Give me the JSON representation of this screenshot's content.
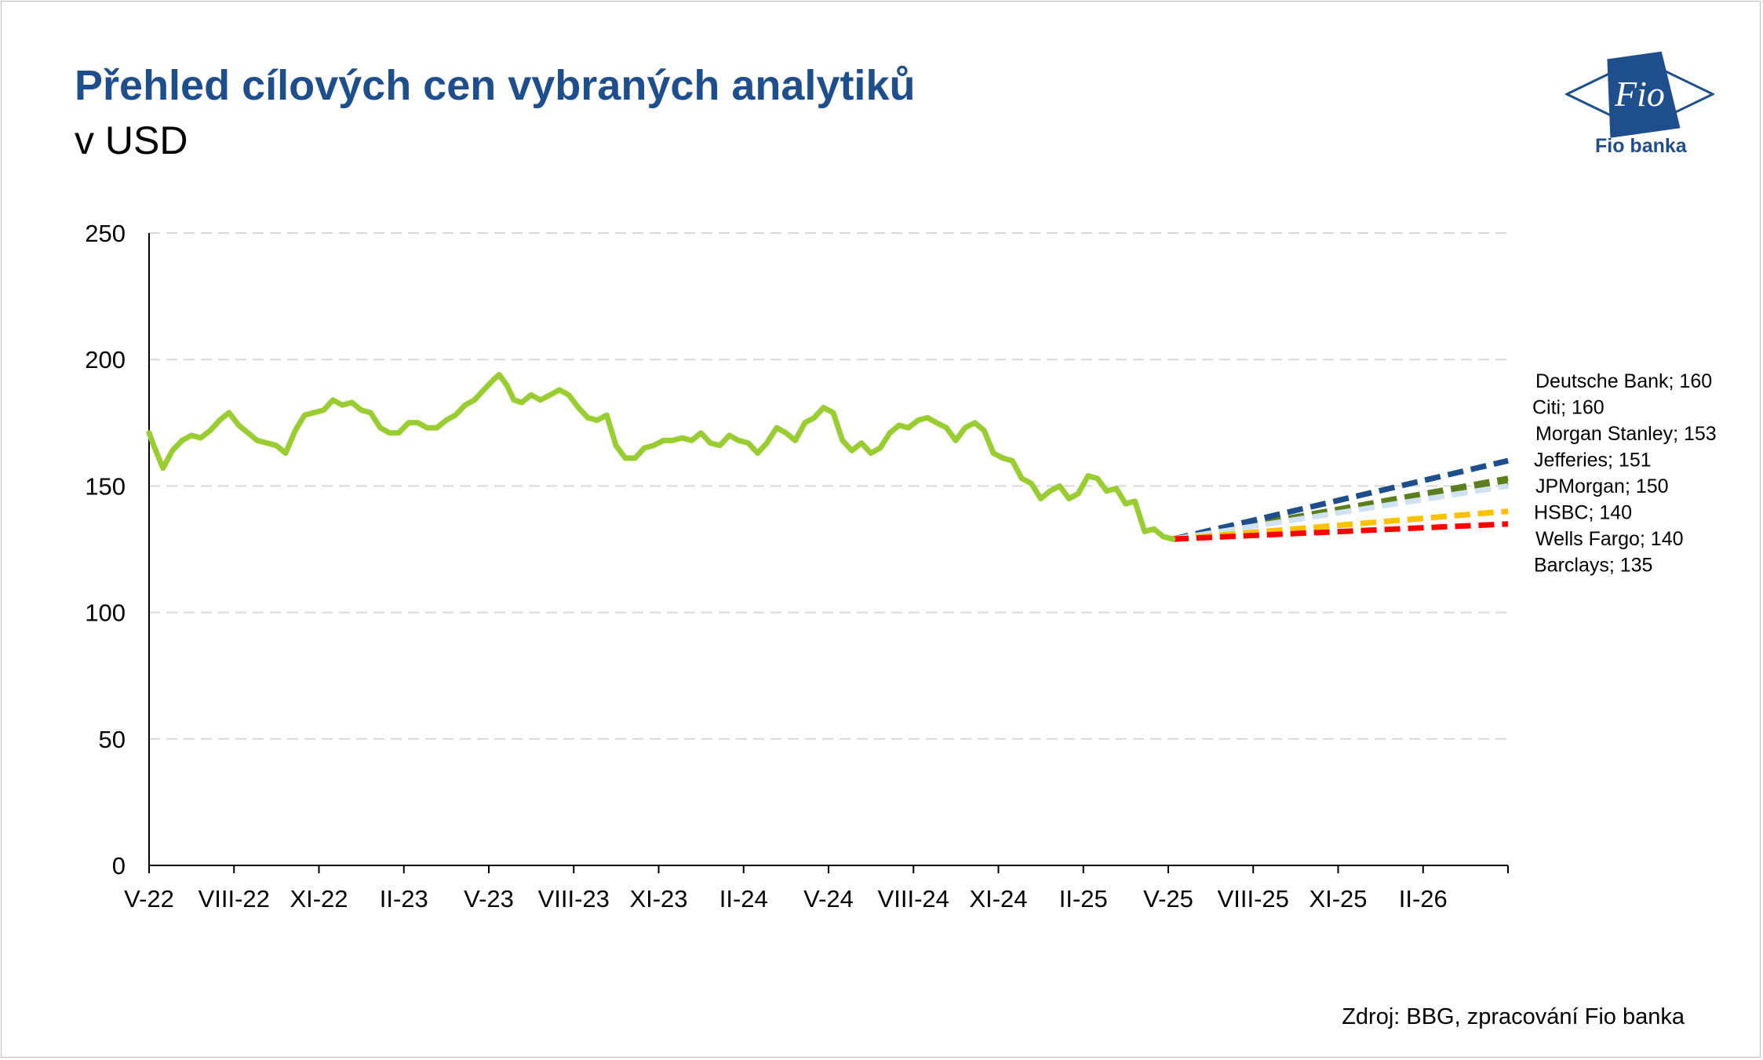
{
  "header": {
    "title": "Přehled cílových cen vybraných analytiků",
    "subtitle": "v USD"
  },
  "logo": {
    "mark_text": "Fio",
    "caption": "Fio banka"
  },
  "source": "Zdroj: BBG, zpracování  Fio banka",
  "colors": {
    "brand": "#1f4e8c",
    "price_line": "#9acd32",
    "gridline": "#d9d9d9"
  },
  "chart_data": {
    "type": "line",
    "title": "Přehled cílových cen vybraných analytiků",
    "subtitle": "v USD",
    "xlabel": "",
    "ylabel": "",
    "x_ticks": [
      "V-22",
      "VIII-22",
      "XI-22",
      "II-23",
      "V-23",
      "VIII-23",
      "XI-23",
      "II-24",
      "V-24",
      "VIII-24",
      "XI-24",
      "II-25",
      "V-25",
      "VIII-25",
      "XI-25",
      "II-26"
    ],
    "y_ticks": [
      0,
      50,
      100,
      150,
      200,
      250
    ],
    "ylim": [
      0,
      250
    ],
    "xlim": [
      "2022-05",
      "2026-05"
    ],
    "grid": "horizontal dashed",
    "legend": "none; target labels at right",
    "series": [
      {
        "name": "",
        "color": "#9acd32",
        "style": "solid",
        "points": [
          [
            "2022-05-01",
            171
          ],
          [
            "2022-05-06",
            166
          ],
          [
            "2022-05-16",
            157
          ],
          [
            "2022-05-26",
            164
          ],
          [
            "2022-06-06",
            168
          ],
          [
            "2022-06-16",
            170
          ],
          [
            "2022-06-26",
            169
          ],
          [
            "2022-07-06",
            172
          ],
          [
            "2022-07-16",
            176
          ],
          [
            "2022-07-26",
            179
          ],
          [
            "2022-08-06",
            174
          ],
          [
            "2022-08-16",
            171
          ],
          [
            "2022-08-26",
            168
          ],
          [
            "2022-09-06",
            167
          ],
          [
            "2022-09-16",
            166
          ],
          [
            "2022-09-26",
            163
          ],
          [
            "2022-10-06",
            172
          ],
          [
            "2022-10-16",
            178
          ],
          [
            "2022-10-26",
            179
          ],
          [
            "2022-11-06",
            180
          ],
          [
            "2022-11-16",
            184
          ],
          [
            "2022-11-26",
            182
          ],
          [
            "2022-12-06",
            183
          ],
          [
            "2022-12-16",
            180
          ],
          [
            "2022-12-26",
            179
          ],
          [
            "2023-01-06",
            173
          ],
          [
            "2023-01-16",
            171
          ],
          [
            "2023-01-26",
            171
          ],
          [
            "2023-02-06",
            175
          ],
          [
            "2023-02-16",
            175
          ],
          [
            "2023-02-26",
            173
          ],
          [
            "2023-03-06",
            173
          ],
          [
            "2023-03-16",
            176
          ],
          [
            "2023-03-26",
            178
          ],
          [
            "2023-04-06",
            182
          ],
          [
            "2023-04-16",
            184
          ],
          [
            "2023-04-26",
            188
          ],
          [
            "2023-05-06",
            192
          ],
          [
            "2023-05-12",
            194
          ],
          [
            "2023-05-20",
            190
          ],
          [
            "2023-05-28",
            184
          ],
          [
            "2023-06-06",
            183
          ],
          [
            "2023-06-16",
            186
          ],
          [
            "2023-06-26",
            184
          ],
          [
            "2023-07-06",
            186
          ],
          [
            "2023-07-16",
            188
          ],
          [
            "2023-07-26",
            186
          ],
          [
            "2023-08-06",
            181
          ],
          [
            "2023-08-16",
            177
          ],
          [
            "2023-08-26",
            176
          ],
          [
            "2023-09-06",
            178
          ],
          [
            "2023-09-16",
            166
          ],
          [
            "2023-09-26",
            161
          ],
          [
            "2023-10-06",
            161
          ],
          [
            "2023-10-16",
            165
          ],
          [
            "2023-10-26",
            166
          ],
          [
            "2023-11-06",
            168
          ],
          [
            "2023-11-16",
            168
          ],
          [
            "2023-11-26",
            169
          ],
          [
            "2023-12-06",
            168
          ],
          [
            "2023-12-16",
            171
          ],
          [
            "2023-12-26",
            167
          ],
          [
            "2024-01-06",
            166
          ],
          [
            "2024-01-16",
            170
          ],
          [
            "2024-01-26",
            168
          ],
          [
            "2024-02-06",
            167
          ],
          [
            "2024-02-16",
            163
          ],
          [
            "2024-02-26",
            167
          ],
          [
            "2024-03-06",
            173
          ],
          [
            "2024-03-16",
            171
          ],
          [
            "2024-03-26",
            168
          ],
          [
            "2024-04-06",
            175
          ],
          [
            "2024-04-16",
            177
          ],
          [
            "2024-04-26",
            181
          ],
          [
            "2024-05-06",
            179
          ],
          [
            "2024-05-16",
            168
          ],
          [
            "2024-05-26",
            164
          ],
          [
            "2024-06-06",
            167
          ],
          [
            "2024-06-16",
            163
          ],
          [
            "2024-06-26",
            165
          ],
          [
            "2024-07-06",
            171
          ],
          [
            "2024-07-16",
            174
          ],
          [
            "2024-07-26",
            173
          ],
          [
            "2024-08-06",
            176
          ],
          [
            "2024-08-16",
            177
          ],
          [
            "2024-08-26",
            175
          ],
          [
            "2024-09-06",
            173
          ],
          [
            "2024-09-16",
            168
          ],
          [
            "2024-09-26",
            173
          ],
          [
            "2024-10-06",
            175
          ],
          [
            "2024-10-16",
            172
          ],
          [
            "2024-10-26",
            163
          ],
          [
            "2024-11-06",
            161
          ],
          [
            "2024-11-16",
            160
          ],
          [
            "2024-11-26",
            153
          ],
          [
            "2024-12-06",
            151
          ],
          [
            "2024-12-16",
            145
          ],
          [
            "2024-12-26",
            148
          ],
          [
            "2025-01-06",
            150
          ],
          [
            "2025-01-16",
            145
          ],
          [
            "2025-01-26",
            147
          ],
          [
            "2025-02-06",
            154
          ],
          [
            "2025-02-16",
            153
          ],
          [
            "2025-02-26",
            148
          ],
          [
            "2025-03-06",
            149
          ],
          [
            "2025-03-16",
            143
          ],
          [
            "2025-03-26",
            144
          ],
          [
            "2025-04-06",
            132
          ],
          [
            "2025-04-16",
            133
          ],
          [
            "2025-04-26",
            130
          ],
          [
            "2025-05-06",
            129
          ]
        ]
      },
      {
        "name": "Deutsche Bank",
        "color": "#1f4e8c",
        "style": "dashed",
        "points": [
          [
            "2025-05-06",
            129
          ],
          [
            "2026-05-01",
            160
          ]
        ]
      },
      {
        "name": "Citi",
        "color": "#1f4e8c",
        "style": "dashed",
        "points": [
          [
            "2025-05-06",
            129
          ],
          [
            "2026-05-01",
            160
          ]
        ]
      },
      {
        "name": "Morgan Stanley",
        "color": "#5b7f1e",
        "style": "dashed",
        "points": [
          [
            "2025-05-06",
            129
          ],
          [
            "2026-05-01",
            153
          ]
        ]
      },
      {
        "name": "Jefferies",
        "color": "#5b7f1e",
        "style": "dashed",
        "points": [
          [
            "2025-05-06",
            129
          ],
          [
            "2026-05-01",
            151
          ]
        ]
      },
      {
        "name": "JPMorgan",
        "color": "#cfe2f3",
        "style": "dashed",
        "points": [
          [
            "2025-05-06",
            129
          ],
          [
            "2026-05-01",
            150
          ]
        ]
      },
      {
        "name": "HSBC",
        "color": "#ffc000",
        "style": "dashed",
        "points": [
          [
            "2025-05-06",
            129
          ],
          [
            "2026-05-01",
            140
          ]
        ]
      },
      {
        "name": "Wells Fargo",
        "color": "#ffc000",
        "style": "dashed",
        "points": [
          [
            "2025-05-06",
            129
          ],
          [
            "2026-05-01",
            140
          ]
        ]
      },
      {
        "name": "Barclays",
        "color": "#ff0000",
        "style": "dashed",
        "points": [
          [
            "2025-05-06",
            129
          ],
          [
            "2026-05-01",
            135
          ]
        ]
      }
    ],
    "annotations": [
      "Deutsche Bank; 160",
      "Citi; 160",
      "Morgan Stanley; 153",
      "Jefferies;  151",
      "JPMorgan; 150",
      "HSBC; 140",
      "Wells Fargo; 140",
      "Barclays;  135"
    ]
  }
}
